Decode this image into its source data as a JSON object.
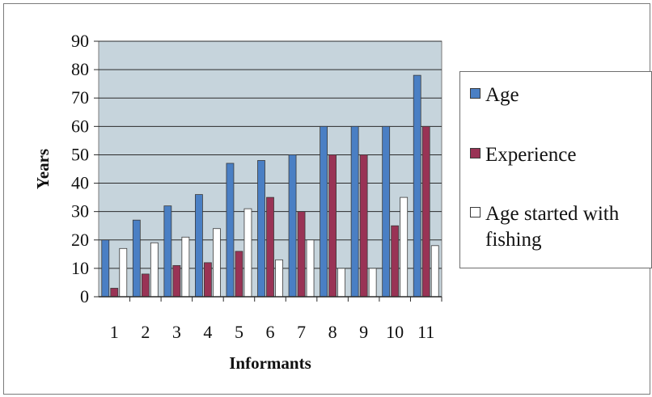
{
  "chart_data": {
    "type": "bar",
    "title": "",
    "xlabel": "Informants",
    "ylabel": "Years",
    "ylim": [
      0,
      90
    ],
    "yticks": [
      0,
      10,
      20,
      30,
      40,
      50,
      60,
      70,
      80,
      90
    ],
    "categories": [
      "1",
      "2",
      "3",
      "4",
      "5",
      "6",
      "7",
      "8",
      "9",
      "10",
      "11"
    ],
    "grid": true,
    "legend_position": "right",
    "plot_background": "#c6d4dc",
    "series": [
      {
        "name": "Age",
        "color": "#4a7fc4",
        "values": [
          20,
          27,
          32,
          36,
          47,
          48,
          50,
          60,
          60,
          60,
          78
        ]
      },
      {
        "name": "Experience",
        "color": "#993355",
        "values": [
          3,
          8,
          11,
          12,
          16,
          35,
          30,
          50,
          50,
          25,
          60
        ]
      },
      {
        "name": "Age started with fishing",
        "color": "#ffffff",
        "values": [
          17,
          19,
          21,
          24,
          31,
          13,
          20,
          10,
          10,
          35,
          18
        ]
      }
    ]
  }
}
